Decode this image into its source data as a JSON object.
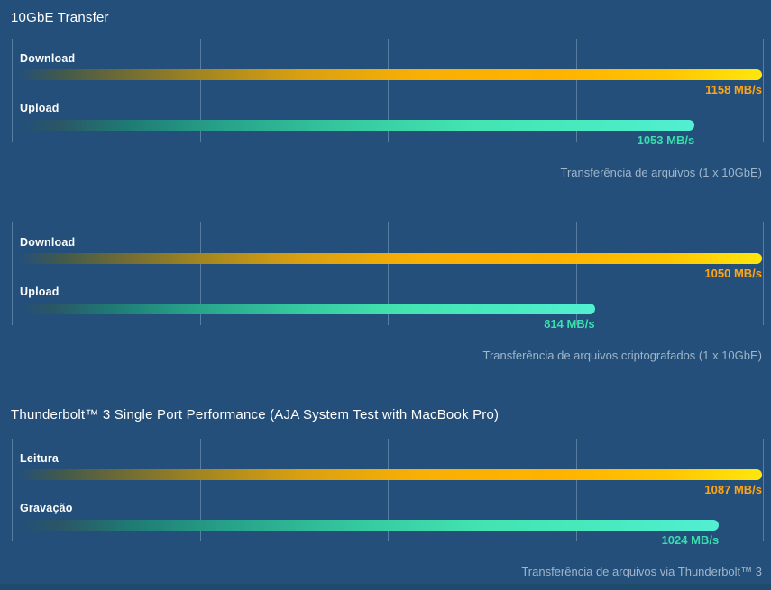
{
  "page": {
    "background_color": "#234F7A",
    "footer_strip_color": "#1E4A6C"
  },
  "styles": {
    "label_color": "#FFFFFF",
    "caption_color": "#9FB5C9",
    "value_color_yellow": "#FFA515",
    "value_color_teal": "#38DFAF",
    "gridline_color": "rgba(188,211,229,0.35)",
    "bar_tip_color_yellow": "#FFE70D",
    "bar_mid_color_yellow": "#FFB200",
    "bar_tip_color_teal": "#52EFD2",
    "bar_mid_color_teal": "#35C89F"
  },
  "section_titles": {
    "ten_gbe": "10GbE Transfer",
    "thunderbolt": "Thunderbolt™ 3 Single Port Performance (AJA System Test with MacBook Pro)"
  },
  "chart_data": [
    {
      "type": "bar",
      "orientation": "horizontal",
      "group": "10GbE Transfer",
      "caption": "Transferência de arquivos (1 x 10GbE)",
      "categories": [
        "Download",
        "Upload"
      ],
      "values": [
        1158,
        1053
      ],
      "unit": "MB/s",
      "value_labels": [
        "1158 MB/s",
        "1053 MB/s"
      ],
      "series_styles": [
        "yellow-gradient",
        "teal-gradient"
      ],
      "xlim": [
        0,
        1158
      ],
      "grid": true,
      "gridline_count": 5,
      "legend": "none"
    },
    {
      "type": "bar",
      "orientation": "horizontal",
      "group": "10GbE Transfer",
      "caption": "Transferência de arquivos criptografados (1 x 10GbE)",
      "categories": [
        "Download",
        "Upload"
      ],
      "values": [
        1050,
        814
      ],
      "unit": "MB/s",
      "value_labels": [
        "1050 MB/s",
        "814 MB/s"
      ],
      "series_styles": [
        "yellow-gradient",
        "teal-gradient"
      ],
      "xlim": [
        0,
        1050
      ],
      "grid": true,
      "gridline_count": 5,
      "legend": "none"
    },
    {
      "type": "bar",
      "orientation": "horizontal",
      "group": "Thunderbolt™ 3 Single Port Performance (AJA System Test with MacBook Pro)",
      "caption": "Transferência de arquivos via Thunderbolt™ 3",
      "categories": [
        "Leitura",
        "Gravação"
      ],
      "values": [
        1087,
        1024
      ],
      "unit": "MB/s",
      "value_labels": [
        "1087 MB/s",
        "1024 MB/s"
      ],
      "series_styles": [
        "yellow-gradient",
        "teal-gradient"
      ],
      "xlim": [
        0,
        1087
      ],
      "grid": true,
      "gridline_count": 5,
      "legend": "none"
    }
  ]
}
